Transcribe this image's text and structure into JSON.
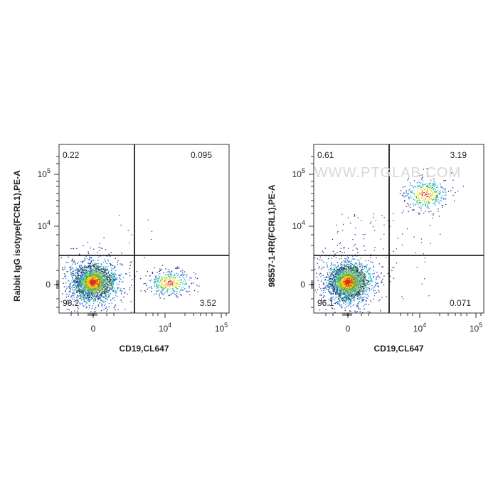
{
  "watermark": "WWW.PTGLAB.COM",
  "panels": [
    {
      "y_label": "Rabbit IgG isotype(FCRL1),PE-A",
      "x_label": "CD19,CL647",
      "x_ticks": [
        "0",
        {
          "base": "10",
          "exp": "4"
        },
        {
          "base": "10",
          "exp": "5"
        }
      ],
      "y_ticks": [
        "0",
        {
          "base": "10",
          "exp": "4"
        },
        {
          "base": "10",
          "exp": "5"
        }
      ],
      "quadrants": {
        "upper_left": 0.22,
        "upper_right": 0.095,
        "lower_left": 96.2,
        "lower_right": 3.52
      }
    },
    {
      "y_label": "98557-1-RR(FCRL1),PE-A",
      "x_label": "CD19,CL647",
      "x_ticks": [
        "0",
        {
          "base": "10",
          "exp": "4"
        },
        {
          "base": "10",
          "exp": "5"
        }
      ],
      "y_ticks": [
        "0",
        {
          "base": "10",
          "exp": "4"
        },
        {
          "base": "10",
          "exp": "5"
        }
      ],
      "quadrants": {
        "upper_left": 0.61,
        "upper_right": 3.19,
        "lower_left": 96.1,
        "lower_right": 0.071
      }
    }
  ]
}
